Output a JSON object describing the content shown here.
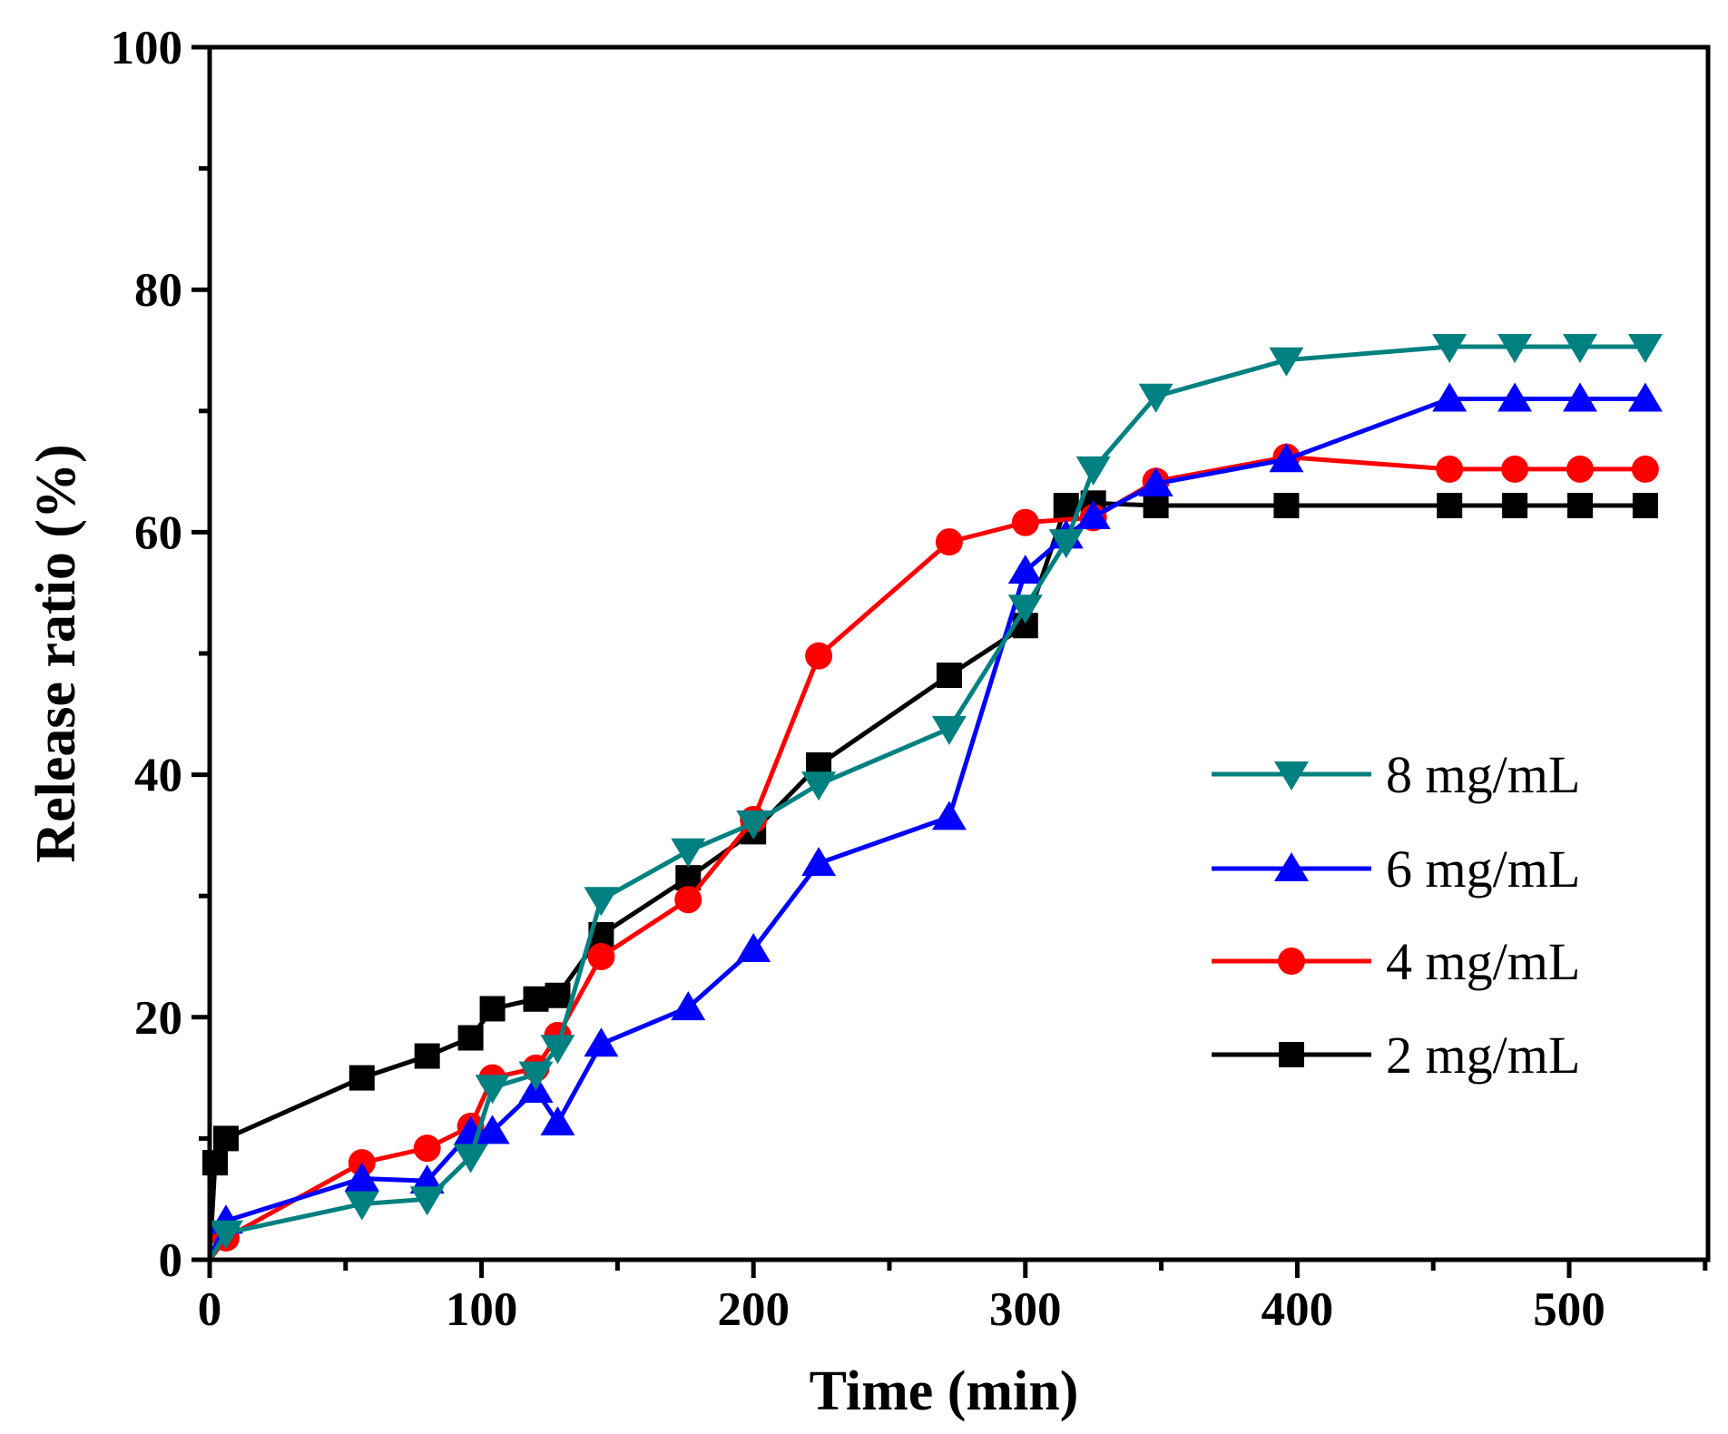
{
  "chart_data": {
    "type": "line",
    "title": "",
    "xlabel": "Time (min)",
    "ylabel": "Release ratio (%)",
    "xlim": [
      0,
      551
    ],
    "ylim": [
      0,
      100
    ],
    "xticks": [
      0,
      100,
      200,
      300,
      400,
      500
    ],
    "yticks": [
      0,
      20,
      40,
      60,
      80,
      100
    ],
    "grid": false,
    "legend_position": "center-right",
    "series": [
      {
        "name": "8 mg/mL",
        "color": "#008080",
        "marker": "triangle-down",
        "x": [
          0,
          6,
          56,
          80,
          96,
          104,
          120,
          128,
          144,
          176,
          200,
          224,
          272,
          300,
          315,
          325,
          348,
          396,
          456,
          480,
          504,
          528
        ],
        "y": [
          0,
          2.2,
          4.6,
          5,
          8.5,
          14.2,
          15.3,
          17.5,
          29.7,
          33.7,
          36,
          39.2,
          43.8,
          53.8,
          59.2,
          65.2,
          71.2,
          74.2,
          75.3,
          75.3,
          75.3,
          75.3
        ]
      },
      {
        "name": "6 mg/mL",
        "color": "#0000ff",
        "marker": "triangle-up",
        "x": [
          0,
          6,
          56,
          80,
          96,
          104,
          120,
          128,
          144,
          176,
          200,
          224,
          272,
          300,
          315,
          325,
          348,
          396,
          456,
          480,
          504,
          528
        ],
        "y": [
          0,
          3.2,
          6.7,
          6.5,
          10.5,
          10.6,
          14,
          11.3,
          17.8,
          20.8,
          25.6,
          32.7,
          36.5,
          56.8,
          59.7,
          61.3,
          64,
          66,
          71,
          71,
          71,
          71
        ]
      },
      {
        "name": "4 mg/mL",
        "color": "#ff0000",
        "marker": "circle",
        "x": [
          0,
          6,
          56,
          80,
          96,
          104,
          120,
          128,
          144,
          176,
          200,
          224,
          272,
          300,
          325,
          348,
          396,
          456,
          480,
          504,
          528
        ],
        "y": [
          0,
          1.8,
          8,
          9.2,
          11,
          15,
          15.8,
          18.5,
          25,
          29.7,
          36.3,
          49.8,
          59.2,
          60.8,
          61.2,
          64.2,
          66.2,
          65.2,
          65.2,
          65.2,
          65.2
        ]
      },
      {
        "name": "2 mg/mL",
        "color": "#000000",
        "marker": "square",
        "x": [
          0,
          2,
          6,
          56,
          80,
          96,
          104,
          120,
          128,
          144,
          176,
          200,
          224,
          272,
          300,
          315,
          325,
          348,
          396,
          456,
          480,
          504,
          528
        ],
        "y": [
          0,
          8,
          10,
          15,
          16.8,
          18.3,
          20.7,
          21.5,
          21.8,
          26.8,
          31.5,
          35.3,
          40.8,
          48.2,
          52.3,
          62.2,
          62.4,
          62.2,
          62.2,
          62.2,
          62.2,
          62.2,
          62.2
        ]
      }
    ]
  }
}
